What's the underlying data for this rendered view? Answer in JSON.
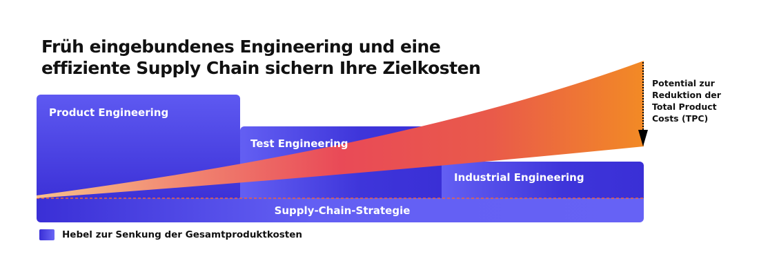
{
  "title": {
    "line1": "Früh eingebundenes Engineering und eine",
    "line2": "effiziente Supply Chain sichern Ihre Zielkosten"
  },
  "phases": [
    {
      "label": "Product Engineering"
    },
    {
      "label": "Test Engineering"
    },
    {
      "label": "Industrial Engineering"
    }
  ],
  "base": {
    "label": "Supply-Chain-Strategie"
  },
  "potential": {
    "lines": [
      "Potential zur",
      "Reduktion der",
      "Total Product",
      "Costs (TPC)"
    ]
  },
  "legend": {
    "label": "Hebel zur Senkung der Gesamtproduktkosten"
  },
  "colors": {
    "blue_dark": "#3a2fd6",
    "blue_light": "#635ff3",
    "wedge_start": "#f8c08a",
    "wedge_mid": "#e94a57",
    "wedge_end": "#f28a25"
  }
}
